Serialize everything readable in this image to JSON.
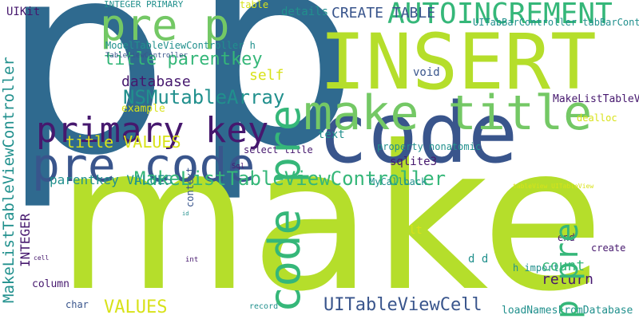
{
  "palette": {
    "purple": "#46186e",
    "blue": "#2f6a8f",
    "navy": "#39558c",
    "teal": "#21908d",
    "green": "#35b779",
    "lime": "#b5de2b",
    "yellow": "#d8e219",
    "light": "#74c865"
  },
  "words": [
    "p",
    "make",
    "INSERT",
    "code",
    "pre code",
    "make title",
    "code pre",
    "p pre",
    "primary key",
    "AUTOINCREMENT",
    "pre p",
    "MakeListTableViewController",
    "UITableViewCell",
    "NSMutableArray",
    "database",
    "VALUES",
    "title VALUES",
    "INTEGER",
    "title parentkey",
    "return",
    "h import",
    "loadNamesFromDatabase",
    "CREATE TABLE",
    "count",
    "self",
    "void",
    "sqlite3",
    "text",
    "parentkey VALUES",
    "details",
    "table",
    "UIKit",
    "INTEGER PRIMARY",
    "ModelTableViewController h",
    "TableViewController",
    "UITabBarController tabBarController",
    "MakeListTableViewController h",
    "dealloc",
    "MyCallback",
    "select title",
    "Sql",
    "property nonatomic",
    "lt",
    "d d",
    "create",
    "column",
    "cell",
    "record",
    "context",
    "end",
    "char",
    "int",
    "example",
    "id",
    "tableView UITableView",
    "import ModelTableViewController"
  ]
}
